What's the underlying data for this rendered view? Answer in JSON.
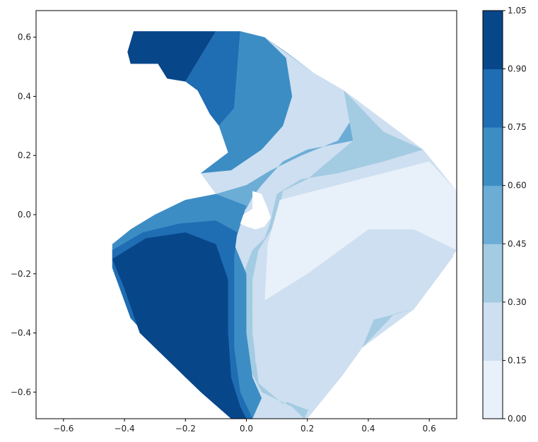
{
  "chart_data": {
    "type": "contourf",
    "title": "",
    "xlabel": "",
    "ylabel": "",
    "xlim": [
      -0.69,
      0.69
    ],
    "ylim": [
      -0.69,
      0.69
    ],
    "x_ticks": [
      "−0.6",
      "−0.4",
      "−0.2",
      "0.0",
      "0.2",
      "0.4",
      "0.6"
    ],
    "x_tick_values": [
      -0.6,
      -0.4,
      -0.2,
      0.0,
      0.2,
      0.4,
      0.6
    ],
    "y_ticks": [
      "0.6",
      "0.4",
      "0.2",
      "0.0",
      "−0.2",
      "−0.4",
      "−0.6"
    ],
    "y_tick_values": [
      0.6,
      0.4,
      0.2,
      0.0,
      -0.2,
      -0.4,
      -0.6
    ],
    "colormap": "Blues",
    "levels": [
      0.0,
      0.15,
      0.3,
      0.45,
      0.6,
      0.75,
      0.9,
      1.05
    ],
    "level_colors": [
      "#e8f0fa",
      "#cddff0",
      "#a3cbe2",
      "#6cadd6",
      "#3d8dc5",
      "#1f6db3",
      "#08468a"
    ],
    "colorbar_ticks": [
      "0.00",
      "0.15",
      "0.30",
      "0.45",
      "0.60",
      "0.75",
      "0.90",
      "1.05"
    ],
    "grid": false,
    "domain_shape": "diamond-shaped region with a notch in the upper-left and a small hole near the origin",
    "regions": [
      {
        "level": 6,
        "range": [
          0.9,
          1.05
        ],
        "label": "top-left cap",
        "polygon": [
          [
            -0.37,
            0.62
          ],
          [
            -0.1,
            0.62
          ],
          [
            -0.2,
            0.45
          ],
          [
            -0.26,
            0.46
          ],
          [
            -0.29,
            0.51
          ],
          [
            -0.34,
            0.51
          ],
          [
            -0.38,
            0.51
          ],
          [
            -0.39,
            0.55
          ]
        ]
      },
      {
        "level": 5,
        "range": [
          0.75,
          0.9
        ],
        "polygon": [
          [
            -0.1,
            0.62
          ],
          [
            -0.02,
            0.62
          ],
          [
            -0.04,
            0.36
          ],
          [
            -0.09,
            0.3
          ],
          [
            -0.12,
            0.34
          ],
          [
            -0.14,
            0.38
          ],
          [
            -0.16,
            0.42
          ],
          [
            -0.2,
            0.45
          ]
        ]
      },
      {
        "level": 4,
        "range": [
          0.6,
          0.75
        ],
        "polygon": [
          [
            -0.02,
            0.62
          ],
          [
            0.06,
            0.6
          ],
          [
            0.13,
            0.53
          ],
          [
            0.15,
            0.4
          ],
          [
            0.12,
            0.3
          ],
          [
            0.05,
            0.22
          ],
          [
            -0.05,
            0.15
          ],
          [
            -0.15,
            0.14
          ],
          [
            -0.06,
            0.21
          ],
          [
            -0.09,
            0.3
          ],
          [
            -0.04,
            0.36
          ]
        ]
      },
      {
        "level": 3,
        "range": [
          0.45,
          0.6
        ],
        "polygon": [
          [
            0.06,
            0.6
          ],
          [
            0.13,
            0.55
          ],
          [
            0.22,
            0.48
          ],
          [
            0.32,
            0.42
          ],
          [
            0.35,
            0.33
          ],
          [
            0.3,
            0.25
          ],
          [
            0.18,
            0.2
          ],
          [
            0.08,
            0.15
          ],
          [
            0.0,
            0.1
          ],
          [
            -0.1,
            0.07
          ],
          [
            -0.2,
            0.05
          ],
          [
            -0.3,
            0.0
          ],
          [
            -0.38,
            -0.05
          ],
          [
            -0.44,
            -0.12
          ],
          [
            -0.33,
            -0.08
          ],
          [
            -0.22,
            -0.04
          ],
          [
            -0.1,
            -0.01
          ],
          [
            0.0,
            0.02
          ],
          [
            0.02,
            0.06
          ],
          [
            0.05,
            0.1
          ],
          [
            0.12,
            0.18
          ],
          [
            0.2,
            0.22
          ],
          [
            0.35,
            0.25
          ],
          [
            0.32,
            0.42
          ],
          [
            0.22,
            0.48
          ]
        ]
      },
      {
        "level": 2,
        "range": [
          0.3,
          0.45
        ],
        "polygon": [
          [
            0.32,
            0.42
          ],
          [
            0.45,
            0.28
          ],
          [
            0.58,
            0.22
          ],
          [
            0.45,
            0.18
          ],
          [
            0.3,
            0.14
          ],
          [
            0.18,
            0.12
          ],
          [
            0.1,
            0.07
          ],
          [
            0.08,
            -0.02
          ],
          [
            0.06,
            -0.08
          ],
          [
            0.02,
            -0.12
          ],
          [
            -0.01,
            -0.2
          ],
          [
            0.0,
            -0.35
          ],
          [
            0.0,
            -0.5
          ],
          [
            0.05,
            -0.6
          ],
          [
            0.15,
            -0.65
          ],
          [
            0.19,
            -0.69
          ],
          [
            0.22,
            -0.62
          ],
          [
            0.31,
            -0.55
          ],
          [
            0.38,
            -0.45
          ],
          [
            0.5,
            -0.32
          ],
          [
            0.55,
            -0.32
          ],
          [
            0.4,
            -0.36
          ],
          [
            0.3,
            -0.48
          ],
          [
            0.25,
            -0.58
          ],
          [
            0.12,
            -0.64
          ],
          [
            0.04,
            -0.57
          ],
          [
            0.02,
            -0.4
          ],
          [
            0.02,
            -0.22
          ],
          [
            0.04,
            -0.12
          ],
          [
            0.1,
            -0.02
          ],
          [
            0.12,
            0.08
          ],
          [
            0.2,
            0.12
          ],
          [
            0.35,
            0.25
          ]
        ]
      },
      {
        "level": 1,
        "range": [
          0.15,
          0.3
        ],
        "polygon": [
          [
            0.58,
            0.22
          ],
          [
            0.6,
            0.18
          ],
          [
            0.4,
            0.12
          ],
          [
            0.25,
            0.08
          ],
          [
            0.12,
            0.04
          ],
          [
            0.12,
            -0.05
          ],
          [
            0.05,
            -0.18
          ],
          [
            0.02,
            -0.32
          ],
          [
            0.03,
            -0.5
          ],
          [
            0.1,
            -0.62
          ],
          [
            0.2,
            -0.66
          ],
          [
            0.31,
            -0.55
          ],
          [
            0.38,
            -0.45
          ],
          [
            0.42,
            -0.35
          ],
          [
            0.55,
            -0.32
          ],
          [
            0.68,
            -0.14
          ],
          [
            0.55,
            -0.05
          ],
          [
            0.38,
            -0.05
          ],
          [
            0.22,
            -0.2
          ],
          [
            0.06,
            -0.29
          ],
          [
            0.07,
            -0.1
          ],
          [
            0.11,
            0.05
          ]
        ]
      },
      {
        "level": 0,
        "range": [
          0.0,
          0.15
        ],
        "polygon": [
          [
            0.6,
            0.18
          ],
          [
            0.69,
            0.08
          ],
          [
            0.69,
            -0.12
          ],
          [
            0.55,
            -0.05
          ],
          [
            0.4,
            -0.05
          ],
          [
            0.2,
            -0.2
          ],
          [
            0.06,
            -0.29
          ],
          [
            0.07,
            -0.1
          ],
          [
            0.11,
            0.05
          ]
        ]
      }
    ],
    "left_blob": {
      "level_bands": [
        5,
        4
      ],
      "note": "concentric bands around the dark lower-left region"
    },
    "dark_region": {
      "level": 6,
      "range": [
        0.9,
        1.05
      ],
      "polygon": [
        [
          -0.44,
          -0.15
        ],
        [
          -0.33,
          -0.08
        ],
        [
          -0.2,
          -0.06
        ],
        [
          -0.1,
          -0.1
        ],
        [
          -0.06,
          -0.22
        ],
        [
          -0.06,
          -0.4
        ],
        [
          -0.05,
          -0.55
        ],
        [
          -0.02,
          -0.65
        ],
        [
          0.0,
          -0.69
        ],
        [
          -0.05,
          -0.69
        ],
        [
          -0.15,
          -0.6
        ],
        [
          -0.25,
          -0.5
        ],
        [
          -0.35,
          -0.4
        ],
        [
          -0.4,
          -0.25
        ]
      ]
    }
  }
}
